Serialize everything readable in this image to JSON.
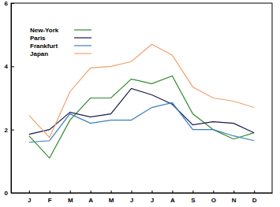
{
  "chart_data": {
    "type": "line",
    "categories": [
      "J",
      "F",
      "M",
      "A",
      "M",
      "J",
      "J",
      "A",
      "S",
      "O",
      "N",
      "D"
    ],
    "series": [
      {
        "name": "New-York",
        "color": "#2e8b2e",
        "values": [
          1.8,
          1.1,
          2.3,
          3.0,
          3.0,
          3.6,
          3.45,
          3.7,
          2.5,
          2.0,
          1.7,
          1.9
        ]
      },
      {
        "name": "Paris",
        "color": "#1a1a4e",
        "values": [
          1.85,
          2.0,
          2.55,
          2.4,
          2.5,
          3.3,
          3.1,
          2.8,
          2.15,
          2.25,
          2.2,
          1.9
        ]
      },
      {
        "name": "Frankfurt",
        "color": "#3a7fc0",
        "values": [
          1.6,
          1.65,
          2.5,
          2.2,
          2.3,
          2.3,
          2.7,
          2.85,
          2.0,
          2.0,
          1.8,
          1.65
        ]
      },
      {
        "name": "Japan",
        "color": "#f0a070",
        "values": [
          2.45,
          1.75,
          3.2,
          3.95,
          4.0,
          4.15,
          4.7,
          4.35,
          3.35,
          3.0,
          2.9,
          2.7
        ]
      }
    ],
    "ylim": [
      0,
      6
    ],
    "yticks": [
      0,
      2,
      4,
      6
    ],
    "grid": false,
    "legend": "top-left"
  }
}
